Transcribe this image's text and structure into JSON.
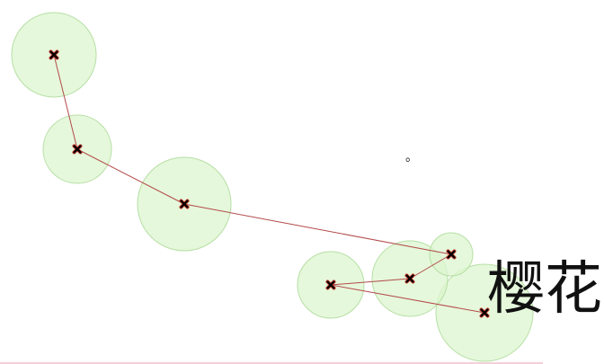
{
  "label": "樱花",
  "mark": "。",
  "colors": {
    "circle_fill": "#dcf5cf",
    "circle_stroke": "#b6dfa4",
    "link": "#b44a4a",
    "node_border": "#c0392b",
    "node_fill": "#000000",
    "bottom_rule": "#e8a0b0"
  },
  "nodes": [
    {
      "id": "n1"
    },
    {
      "id": "n2"
    },
    {
      "id": "n3"
    },
    {
      "id": "n4"
    },
    {
      "id": "n5"
    },
    {
      "id": "n6"
    },
    {
      "id": "n7"
    }
  ],
  "links": [
    [
      "n1",
      "n2"
    ],
    [
      "n2",
      "n3"
    ],
    [
      "n3",
      "n4"
    ],
    [
      "n4",
      "n5"
    ],
    [
      "n5",
      "n6"
    ],
    [
      "n6",
      "n7"
    ]
  ]
}
